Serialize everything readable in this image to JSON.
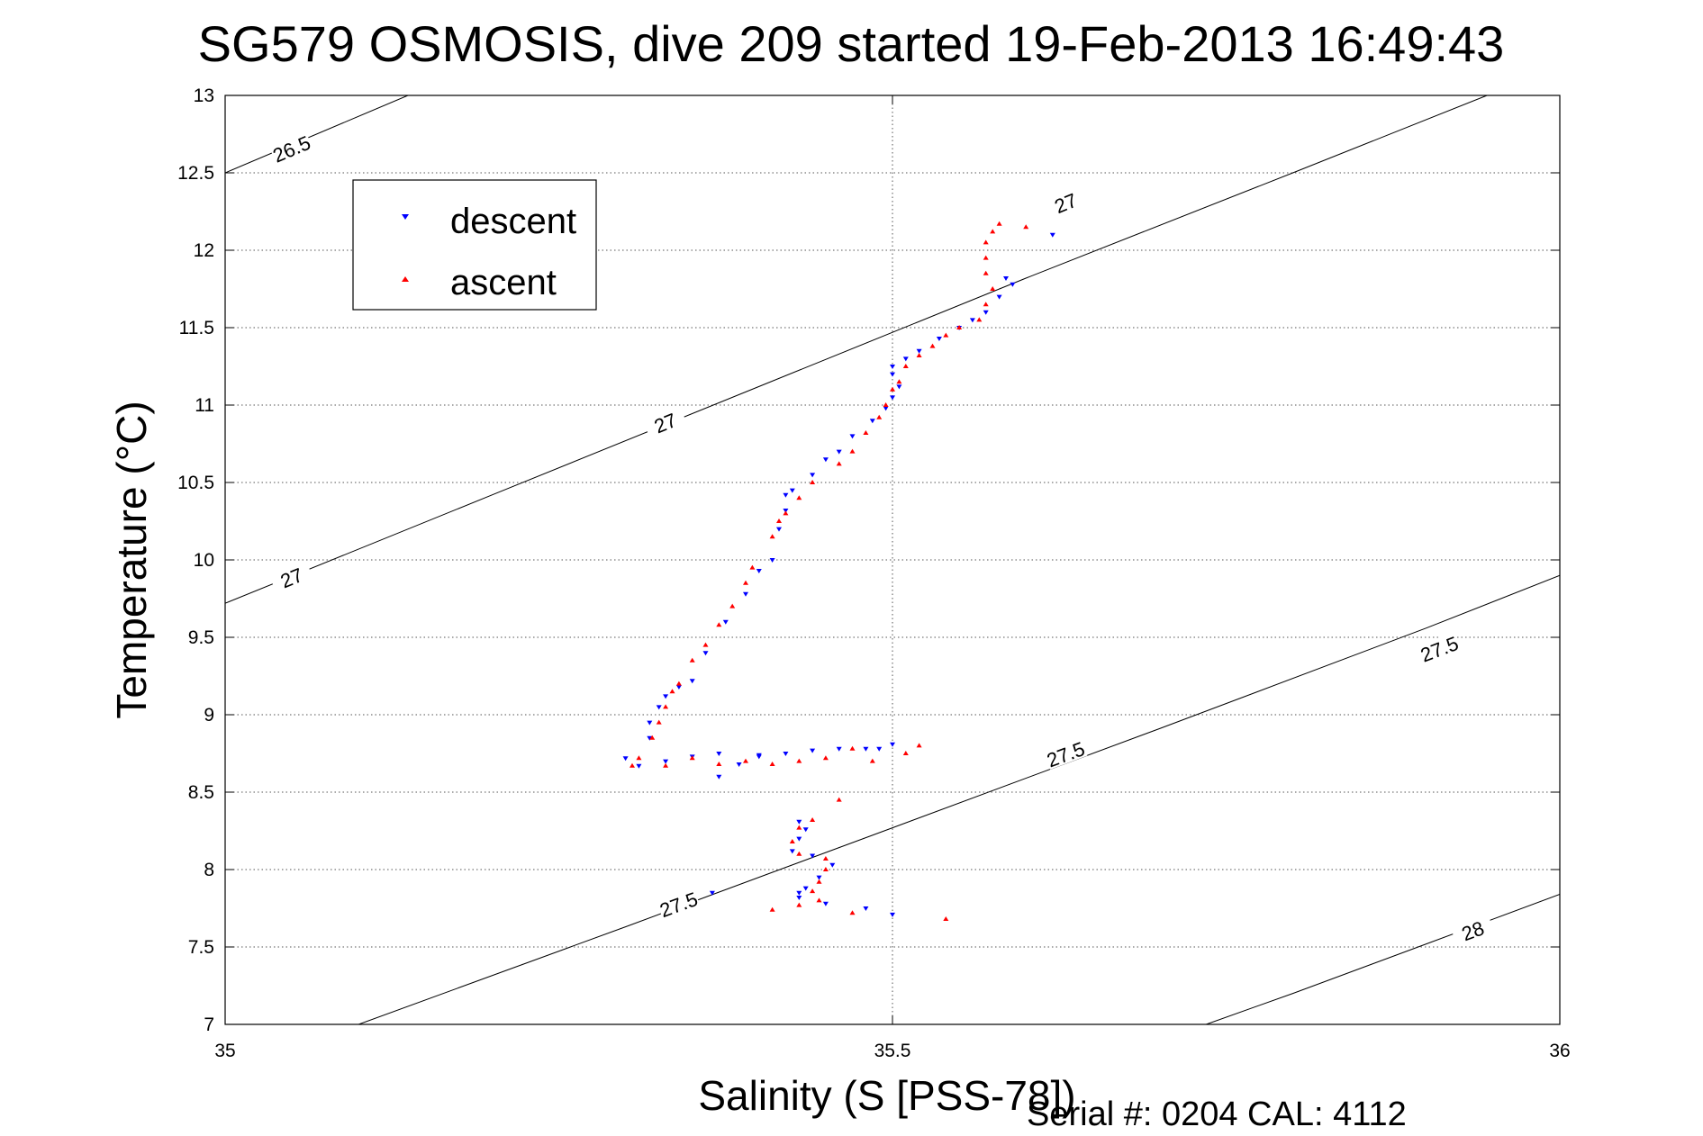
{
  "chart_data": {
    "type": "scatter",
    "title": "SG579 OSMOSIS, dive 209 started 19-Feb-2013 16:49:43",
    "xlabel": "Salinity (S [PSS-78])",
    "ylabel": "Temperature (°C)",
    "xlim": [
      35,
      36
    ],
    "ylim": [
      7,
      13
    ],
    "xticks": [
      35,
      35.5,
      36
    ],
    "xtick_labels": [
      "35",
      "35.5",
      "36"
    ],
    "yticks": [
      7,
      7.5,
      8,
      8.5,
      9,
      9.5,
      10,
      10.5,
      11,
      11.5,
      12,
      12.5,
      13
    ],
    "ytick_labels": [
      "7",
      "7.5",
      "8",
      "8.5",
      "9",
      "9.5",
      "10",
      "10.5",
      "11",
      "11.5",
      "12",
      "12.5",
      "13"
    ],
    "grid": true,
    "legend_position": "top-left",
    "footer": "Serial #: 0204  CAL: 4112",
    "colors": {
      "descent": "#0000ff",
      "ascent": "#ff0000",
      "contour": "#000000"
    },
    "contours": [
      {
        "level": "26.5",
        "points": [
          [
            35.0,
            12.5
          ],
          [
            35.137,
            13.0
          ]
        ],
        "labels": [
          [
            35.05,
            12.65
          ]
        ]
      },
      {
        "level": "27",
        "points": [
          [
            35.0,
            9.72
          ],
          [
            35.2,
            10.42
          ],
          [
            35.4,
            11.12
          ],
          [
            35.6,
            11.82
          ],
          [
            35.8,
            12.5
          ],
          [
            35.96,
            13.05
          ]
        ],
        "labels": [
          [
            35.05,
            9.88
          ],
          [
            35.33,
            10.88
          ],
          [
            35.63,
            12.3
          ]
        ]
      },
      {
        "level": "27.5",
        "points": [
          [
            35.1,
            7.0
          ],
          [
            35.3,
            7.63
          ],
          [
            35.5,
            8.27
          ],
          [
            35.7,
            8.91
          ],
          [
            35.9,
            9.56
          ],
          [
            36.0,
            9.9
          ]
        ],
        "labels": [
          [
            35.34,
            7.77
          ],
          [
            35.63,
            8.74
          ],
          [
            35.91,
            9.42
          ]
        ]
      },
      {
        "level": "28",
        "points": [
          [
            35.735,
            7.0
          ],
          [
            35.8,
            7.2
          ],
          [
            35.9,
            7.52
          ],
          [
            36.0,
            7.84
          ]
        ],
        "labels": [
          [
            35.935,
            7.6
          ]
        ]
      }
    ],
    "series": [
      {
        "name": "descent",
        "marker": "down-triangle",
        "color": "#0000ff",
        "points": [
          [
            35.365,
            7.85
          ],
          [
            35.5,
            7.71
          ],
          [
            35.48,
            7.75
          ],
          [
            35.45,
            7.78
          ],
          [
            35.43,
            7.82
          ],
          [
            35.43,
            7.85
          ],
          [
            35.435,
            7.88
          ],
          [
            35.445,
            7.95
          ],
          [
            35.455,
            8.03
          ],
          [
            35.44,
            8.09
          ],
          [
            35.425,
            8.12
          ],
          [
            35.43,
            8.2
          ],
          [
            35.435,
            8.26
          ],
          [
            35.43,
            8.31
          ],
          [
            35.49,
            8.78
          ],
          [
            35.5,
            8.81
          ],
          [
            35.48,
            8.78
          ],
          [
            35.46,
            8.78
          ],
          [
            35.44,
            8.77
          ],
          [
            35.42,
            8.75
          ],
          [
            35.4,
            8.73
          ],
          [
            35.385,
            8.68
          ],
          [
            35.37,
            8.6
          ],
          [
            35.4,
            8.74
          ],
          [
            35.37,
            8.75
          ],
          [
            35.35,
            8.73
          ],
          [
            35.33,
            8.7
          ],
          [
            35.31,
            8.67
          ],
          [
            35.3,
            8.72
          ],
          [
            35.318,
            8.85
          ],
          [
            35.318,
            8.95
          ],
          [
            35.325,
            9.05
          ],
          [
            35.33,
            9.12
          ],
          [
            35.34,
            9.18
          ],
          [
            35.35,
            9.22
          ],
          [
            35.36,
            9.4
          ],
          [
            35.375,
            9.6
          ],
          [
            35.39,
            9.78
          ],
          [
            35.4,
            9.93
          ],
          [
            35.41,
            10.0
          ],
          [
            35.415,
            10.2
          ],
          [
            35.42,
            10.32
          ],
          [
            35.42,
            10.42
          ],
          [
            35.425,
            10.45
          ],
          [
            35.44,
            10.55
          ],
          [
            35.45,
            10.65
          ],
          [
            35.46,
            10.7
          ],
          [
            35.47,
            10.8
          ],
          [
            35.485,
            10.9
          ],
          [
            35.495,
            10.98
          ],
          [
            35.5,
            11.05
          ],
          [
            35.505,
            11.12
          ],
          [
            35.5,
            11.2
          ],
          [
            35.5,
            11.25
          ],
          [
            35.51,
            11.3
          ],
          [
            35.52,
            11.35
          ],
          [
            35.535,
            11.43
          ],
          [
            35.55,
            11.5
          ],
          [
            35.56,
            11.55
          ],
          [
            35.57,
            11.6
          ],
          [
            35.58,
            11.7
          ],
          [
            35.59,
            11.78
          ],
          [
            35.585,
            11.82
          ],
          [
            35.62,
            12.1
          ]
        ]
      },
      {
        "name": "ascent",
        "marker": "up-triangle",
        "color": "#ff0000",
        "points": [
          [
            35.54,
            7.68
          ],
          [
            35.47,
            7.72
          ],
          [
            35.445,
            7.8
          ],
          [
            35.44,
            7.86
          ],
          [
            35.43,
            7.77
          ],
          [
            35.41,
            7.74
          ],
          [
            35.445,
            7.92
          ],
          [
            35.45,
            8.0
          ],
          [
            35.45,
            8.07
          ],
          [
            35.43,
            8.1
          ],
          [
            35.425,
            8.18
          ],
          [
            35.43,
            8.27
          ],
          [
            35.44,
            8.32
          ],
          [
            35.46,
            8.45
          ],
          [
            35.52,
            8.8
          ],
          [
            35.51,
            8.75
          ],
          [
            35.485,
            8.7
          ],
          [
            35.47,
            8.78
          ],
          [
            35.45,
            8.72
          ],
          [
            35.43,
            8.7
          ],
          [
            35.41,
            8.68
          ],
          [
            35.39,
            8.7
          ],
          [
            35.37,
            8.68
          ],
          [
            35.35,
            8.72
          ],
          [
            35.33,
            8.67
          ],
          [
            35.305,
            8.67
          ],
          [
            35.31,
            8.72
          ],
          [
            35.32,
            8.85
          ],
          [
            35.325,
            8.95
          ],
          [
            35.33,
            9.05
          ],
          [
            35.335,
            9.15
          ],
          [
            35.34,
            9.2
          ],
          [
            35.35,
            9.35
          ],
          [
            35.36,
            9.45
          ],
          [
            35.37,
            9.58
          ],
          [
            35.38,
            9.7
          ],
          [
            35.39,
            9.85
          ],
          [
            35.395,
            9.95
          ],
          [
            35.41,
            10.15
          ],
          [
            35.415,
            10.25
          ],
          [
            35.42,
            10.3
          ],
          [
            35.43,
            10.4
          ],
          [
            35.44,
            10.5
          ],
          [
            35.46,
            10.62
          ],
          [
            35.47,
            10.7
          ],
          [
            35.48,
            10.82
          ],
          [
            35.49,
            10.92
          ],
          [
            35.495,
            11.0
          ],
          [
            35.5,
            11.1
          ],
          [
            35.505,
            11.15
          ],
          [
            35.51,
            11.25
          ],
          [
            35.52,
            11.32
          ],
          [
            35.53,
            11.38
          ],
          [
            35.54,
            11.45
          ],
          [
            35.55,
            11.5
          ],
          [
            35.565,
            11.55
          ],
          [
            35.57,
            11.65
          ],
          [
            35.575,
            11.75
          ],
          [
            35.57,
            11.85
          ],
          [
            35.57,
            11.95
          ],
          [
            35.57,
            12.05
          ],
          [
            35.575,
            12.12
          ],
          [
            35.58,
            12.17
          ],
          [
            35.6,
            12.15
          ]
        ]
      }
    ]
  }
}
